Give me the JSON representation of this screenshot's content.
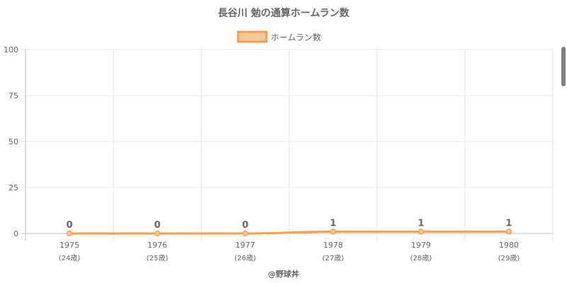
{
  "chart_data": {
    "type": "line",
    "title": "長谷川 勉の通算ホームラン数",
    "categories": [
      "1975",
      "1976",
      "1977",
      "1978",
      "1979",
      "1980"
    ],
    "sub_categories": [
      "(24歳)",
      "(25歳)",
      "(26歳)",
      "(27歳)",
      "(28歳)",
      "(29歳)"
    ],
    "series": [
      {
        "name": "ホームラン数",
        "values": [
          0,
          0,
          0,
          1,
          1,
          1
        ],
        "color": "#f5a04a",
        "fill": "#f8c89a"
      }
    ],
    "data_labels": [
      "0",
      "0",
      "0",
      "1",
      "1",
      "1"
    ],
    "ylim": [
      0,
      100
    ],
    "yticks": [
      "0",
      "25",
      "50",
      "75",
      "100"
    ],
    "ytick_values": [
      0,
      25,
      50,
      75,
      100
    ],
    "grid": true,
    "legend_position": "top-center",
    "credit": "@野球丼"
  }
}
